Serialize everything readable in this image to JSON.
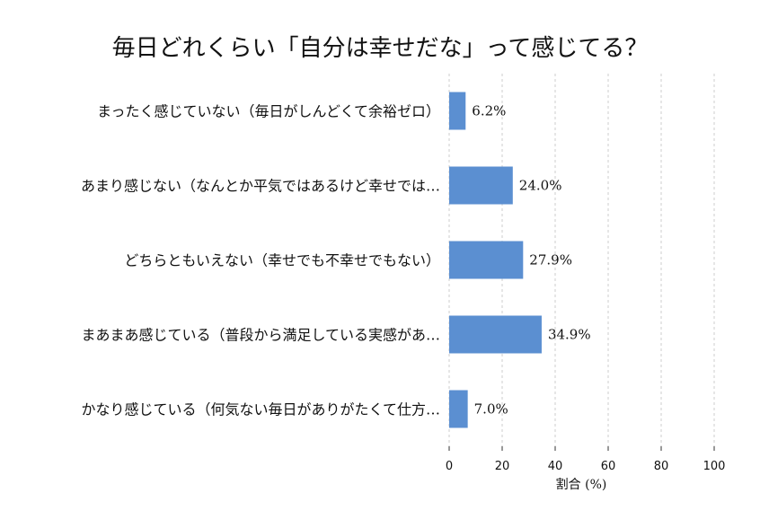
{
  "chart_data": {
    "type": "bar",
    "orientation": "horizontal",
    "title": "毎日どれくらい「自分は幸せだな」って感じてる？",
    "xlabel": "割合 (%)",
    "xlim": [
      0,
      100
    ],
    "xticks": [
      0,
      20,
      40,
      60,
      80,
      100
    ],
    "grid": true,
    "bar_color": "#5b8fd1",
    "categories": [
      "まったく感じていない（毎日がしんどくて余裕ゼロ）",
      "あまり感じない（なんとか平気ではあるけど幸せでは…",
      "どちらともいえない（幸せでも不幸せでもない）",
      "まあまあ感じている（普段から満足している実感があ…",
      "かなり感じている（何気ない毎日がありがたくて仕方…"
    ],
    "values": [
      6.2,
      24.0,
      27.9,
      34.9,
      7.0
    ],
    "value_labels": [
      "6.2%",
      "24.0%",
      "27.9%",
      "34.9%",
      "7.0%"
    ]
  }
}
